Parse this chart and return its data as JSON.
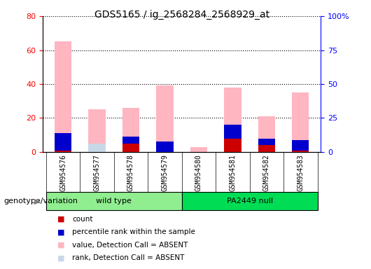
{
  "title": "GDS5165 / ig_2568284_2568929_at",
  "samples": [
    "GSM954576",
    "GSM954577",
    "GSM954578",
    "GSM954579",
    "GSM954580",
    "GSM954581",
    "GSM954582",
    "GSM954583"
  ],
  "group_labels": [
    "wild type",
    "PA2449 null"
  ],
  "group_color_wt": "#90EE90",
  "group_color_pa": "#00DD55",
  "count": [
    1,
    0,
    5,
    0,
    0,
    8,
    4,
    1
  ],
  "percentile_rank": [
    10,
    0,
    4,
    6,
    0,
    8,
    4,
    6
  ],
  "value_absent": [
    65,
    25,
    26,
    39,
    3,
    38,
    21,
    35
  ],
  "rank_absent": [
    10,
    5,
    0,
    6,
    0,
    0,
    5,
    6
  ],
  "ylim_left": [
    0,
    80
  ],
  "ylim_right": [
    0,
    100
  ],
  "yticks_left": [
    0,
    20,
    40,
    60,
    80
  ],
  "yticks_right": [
    0,
    25,
    50,
    75,
    100
  ],
  "ytick_labels_right": [
    "0",
    "25",
    "50",
    "75",
    "100%"
  ],
  "color_count": "#cc0000",
  "color_percentile": "#0000cc",
  "color_value_absent": "#ffb6c1",
  "color_rank_absent": "#c8d8e8",
  "legend_items": [
    "count",
    "percentile rank within the sample",
    "value, Detection Call = ABSENT",
    "rank, Detection Call = ABSENT"
  ],
  "legend_colors": [
    "#cc0000",
    "#0000cc",
    "#ffb6c1",
    "#c8d8e8"
  ],
  "bar_width": 0.5,
  "plot_bg": "#d3d3d3",
  "group_row_bg": "#d3d3d3"
}
